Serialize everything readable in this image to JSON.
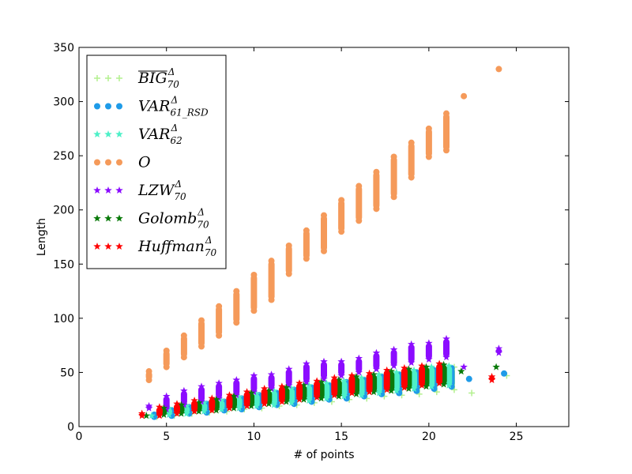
{
  "chart_data": {
    "type": "scatter",
    "title": "",
    "xlabel": "# of points",
    "ylabel": "Length",
    "xlim": [
      0,
      28
    ],
    "ylim": [
      0,
      350
    ],
    "xticks": [
      0,
      5,
      10,
      15,
      20,
      25
    ],
    "yticks": [
      0,
      50,
      100,
      150,
      200,
      250,
      300,
      350
    ],
    "grid": false,
    "legend_position": "top-left",
    "series": [
      {
        "key": "big70",
        "name": "BIG_70^Δ",
        "base": "BIG",
        "sub": "70",
        "sup": "Δ",
        "overline": true,
        "marker": "plus",
        "color": "#b3f08f",
        "x_offset": 0.45,
        "points": [
          [
            4,
            9
          ],
          [
            4,
            12
          ],
          [
            5,
            10
          ],
          [
            5,
            16
          ],
          [
            6,
            12
          ],
          [
            6,
            18
          ],
          [
            7,
            13
          ],
          [
            7,
            20
          ],
          [
            8,
            14
          ],
          [
            8,
            23
          ],
          [
            9,
            16
          ],
          [
            9,
            26
          ],
          [
            10,
            17
          ],
          [
            10,
            28
          ],
          [
            11,
            19
          ],
          [
            11,
            30
          ],
          [
            12,
            20
          ],
          [
            12,
            33
          ],
          [
            13,
            22
          ],
          [
            13,
            36
          ],
          [
            14,
            23
          ],
          [
            14,
            38
          ],
          [
            15,
            25
          ],
          [
            15,
            40
          ],
          [
            16,
            26
          ],
          [
            16,
            43
          ],
          [
            17,
            28
          ],
          [
            17,
            46
          ],
          [
            18,
            29
          ],
          [
            18,
            48
          ],
          [
            19,
            30
          ],
          [
            19,
            50
          ],
          [
            20,
            32
          ],
          [
            20,
            52
          ],
          [
            21,
            34
          ],
          [
            21,
            55
          ],
          [
            22,
            31
          ],
          [
            24,
            47
          ]
        ]
      },
      {
        "key": "var61",
        "name": "VAR_61_RSD^Δ",
        "base": "VAR",
        "sub": "61_RSD",
        "sup": "Δ",
        "overline": false,
        "marker": "circle",
        "color": "#1f9be8",
        "x_offset": 0.3,
        "points": [
          [
            4,
            9
          ],
          [
            4,
            11
          ],
          [
            5,
            10
          ],
          [
            5,
            15
          ],
          [
            6,
            12
          ],
          [
            6,
            18
          ],
          [
            7,
            13
          ],
          [
            7,
            21
          ],
          [
            8,
            15
          ],
          [
            8,
            23
          ],
          [
            9,
            16
          ],
          [
            9,
            26
          ],
          [
            10,
            18
          ],
          [
            10,
            29
          ],
          [
            11,
            20
          ],
          [
            11,
            31
          ],
          [
            12,
            21
          ],
          [
            12,
            34
          ],
          [
            13,
            23
          ],
          [
            13,
            36
          ],
          [
            14,
            25
          ],
          [
            14,
            38
          ],
          [
            15,
            26
          ],
          [
            15,
            41
          ],
          [
            16,
            28
          ],
          [
            16,
            43
          ],
          [
            17,
            30
          ],
          [
            17,
            46
          ],
          [
            18,
            31
          ],
          [
            18,
            48
          ],
          [
            19,
            33
          ],
          [
            19,
            50
          ],
          [
            20,
            35
          ],
          [
            20,
            52
          ],
          [
            21,
            37
          ],
          [
            21,
            54
          ],
          [
            22,
            44
          ],
          [
            24,
            49
          ]
        ]
      },
      {
        "key": "var62",
        "name": "VAR_62^Δ",
        "base": "VAR",
        "sub": "62",
        "sup": "Δ",
        "overline": false,
        "marker": "star",
        "color": "#4ef0c8",
        "x_offset": 0.15,
        "points": [
          [
            4,
            10
          ],
          [
            5,
            11
          ],
          [
            5,
            17
          ],
          [
            6,
            12
          ],
          [
            6,
            19
          ],
          [
            7,
            14
          ],
          [
            7,
            22
          ],
          [
            8,
            16
          ],
          [
            8,
            24
          ],
          [
            9,
            17
          ],
          [
            9,
            27
          ],
          [
            10,
            19
          ],
          [
            10,
            30
          ],
          [
            11,
            20
          ],
          [
            11,
            33
          ],
          [
            12,
            22
          ],
          [
            12,
            35
          ],
          [
            13,
            24
          ],
          [
            13,
            38
          ],
          [
            14,
            26
          ],
          [
            14,
            40
          ],
          [
            15,
            28
          ],
          [
            15,
            42
          ],
          [
            16,
            29
          ],
          [
            16,
            45
          ],
          [
            17,
            31
          ],
          [
            17,
            48
          ],
          [
            18,
            33
          ],
          [
            18,
            50
          ],
          [
            19,
            35
          ],
          [
            19,
            52
          ],
          [
            20,
            37
          ],
          [
            20,
            55
          ],
          [
            21,
            38
          ],
          [
            21,
            56
          ]
        ]
      },
      {
        "key": "o",
        "name": "O",
        "base": "O",
        "sub": "",
        "sup": "",
        "overline": false,
        "marker": "circle",
        "color": "#f59a5a",
        "x_offset": 0,
        "points": [
          [
            4,
            43
          ],
          [
            4,
            51
          ],
          [
            5,
            55
          ],
          [
            5,
            70
          ],
          [
            6,
            64
          ],
          [
            6,
            84
          ],
          [
            7,
            74
          ],
          [
            7,
            98
          ],
          [
            8,
            84
          ],
          [
            8,
            111
          ],
          [
            9,
            96
          ],
          [
            9,
            125
          ],
          [
            10,
            107
          ],
          [
            10,
            140
          ],
          [
            11,
            117
          ],
          [
            11,
            153
          ],
          [
            12,
            141
          ],
          [
            12,
            167
          ],
          [
            13,
            155
          ],
          [
            13,
            181
          ],
          [
            14,
            162
          ],
          [
            14,
            195
          ],
          [
            15,
            180
          ],
          [
            15,
            209
          ],
          [
            16,
            190
          ],
          [
            16,
            222
          ],
          [
            17,
            201
          ],
          [
            17,
            235
          ],
          [
            18,
            212
          ],
          [
            18,
            249
          ],
          [
            19,
            230
          ],
          [
            19,
            262
          ],
          [
            20,
            249
          ],
          [
            20,
            275
          ],
          [
            21,
            255
          ],
          [
            21,
            289
          ],
          [
            22,
            305
          ],
          [
            24,
            330
          ]
        ]
      },
      {
        "key": "lzw70",
        "name": "LZW_70^Δ",
        "base": "LZW",
        "sub": "70",
        "sup": "Δ",
        "overline": false,
        "marker": "star",
        "color": "#8b0cff",
        "x_offset": 0,
        "points": [
          [
            4,
            17
          ],
          [
            4,
            19
          ],
          [
            5,
            16
          ],
          [
            5,
            28
          ],
          [
            6,
            20
          ],
          [
            6,
            33
          ],
          [
            7,
            23
          ],
          [
            7,
            37
          ],
          [
            8,
            26
          ],
          [
            8,
            40
          ],
          [
            9,
            29
          ],
          [
            9,
            43
          ],
          [
            10,
            32
          ],
          [
            10,
            47
          ],
          [
            11,
            35
          ],
          [
            11,
            48
          ],
          [
            12,
            38
          ],
          [
            12,
            53
          ],
          [
            13,
            41
          ],
          [
            13,
            58
          ],
          [
            14,
            44
          ],
          [
            14,
            60
          ],
          [
            15,
            47
          ],
          [
            15,
            60
          ],
          [
            16,
            50
          ],
          [
            16,
            63
          ],
          [
            17,
            53
          ],
          [
            17,
            68
          ],
          [
            18,
            56
          ],
          [
            18,
            71
          ],
          [
            19,
            59
          ],
          [
            19,
            76
          ],
          [
            20,
            62
          ],
          [
            20,
            77
          ],
          [
            21,
            64
          ],
          [
            21,
            81
          ],
          [
            22,
            55
          ],
          [
            24,
            68
          ],
          [
            24,
            72
          ]
        ]
      },
      {
        "key": "golomb70",
        "name": "Golomb_70^Δ",
        "base": "Golomb",
        "sub": "70",
        "sup": "Δ",
        "overline": false,
        "marker": "star",
        "color": "#0a7a0a",
        "x_offset": -0.15,
        "points": [
          [
            4,
            10
          ],
          [
            5,
            11
          ],
          [
            5,
            17
          ],
          [
            6,
            12
          ],
          [
            6,
            20
          ],
          [
            7,
            14
          ],
          [
            7,
            22
          ],
          [
            8,
            15
          ],
          [
            8,
            25
          ],
          [
            9,
            17
          ],
          [
            9,
            28
          ],
          [
            10,
            19
          ],
          [
            10,
            31
          ],
          [
            11,
            21
          ],
          [
            11,
            33
          ],
          [
            12,
            23
          ],
          [
            12,
            36
          ],
          [
            13,
            25
          ],
          [
            13,
            38
          ],
          [
            14,
            26
          ],
          [
            14,
            41
          ],
          [
            15,
            28
          ],
          [
            15,
            43
          ],
          [
            16,
            30
          ],
          [
            16,
            46
          ],
          [
            17,
            32
          ],
          [
            17,
            48
          ],
          [
            18,
            33
          ],
          [
            18,
            51
          ],
          [
            19,
            35
          ],
          [
            19,
            53
          ],
          [
            20,
            37
          ],
          [
            20,
            55
          ],
          [
            21,
            39
          ],
          [
            21,
            57
          ],
          [
            22,
            51
          ],
          [
            24,
            55
          ]
        ]
      },
      {
        "key": "huffman70",
        "name": "Huffman_70^Δ",
        "base": "Huffman",
        "sub": "70",
        "sup": "Δ",
        "overline": false,
        "marker": "star",
        "color": "#ff0000",
        "x_offset": -0.4,
        "points": [
          [
            4,
            10
          ],
          [
            4,
            12
          ],
          [
            5,
            10
          ],
          [
            5,
            18
          ],
          [
            6,
            12
          ],
          [
            6,
            21
          ],
          [
            7,
            14
          ],
          [
            7,
            24
          ],
          [
            8,
            15
          ],
          [
            8,
            26
          ],
          [
            9,
            17
          ],
          [
            9,
            29
          ],
          [
            10,
            19
          ],
          [
            10,
            32
          ],
          [
            11,
            21
          ],
          [
            11,
            35
          ],
          [
            12,
            23
          ],
          [
            12,
            37
          ],
          [
            13,
            25
          ],
          [
            13,
            40
          ],
          [
            14,
            27
          ],
          [
            14,
            42
          ],
          [
            15,
            29
          ],
          [
            15,
            45
          ],
          [
            16,
            31
          ],
          [
            16,
            47
          ],
          [
            17,
            32
          ],
          [
            17,
            49
          ],
          [
            18,
            34
          ],
          [
            18,
            52
          ],
          [
            19,
            36
          ],
          [
            19,
            54
          ],
          [
            20,
            38
          ],
          [
            20,
            56
          ],
          [
            21,
            40
          ],
          [
            21,
            58
          ],
          [
            24,
            43
          ],
          [
            24,
            46
          ]
        ]
      }
    ]
  }
}
